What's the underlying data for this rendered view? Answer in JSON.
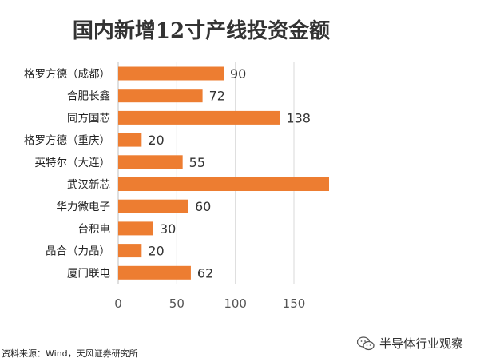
{
  "chart_data": {
    "type": "bar",
    "orientation": "horizontal",
    "title": "国内新增12寸产线投资金额",
    "categories": [
      "格罗方德（成都）",
      "合肥长鑫",
      "同方国芯",
      "格罗方德（重庆）",
      "英特尔（大连）",
      "武汉新芯",
      "华力微电子",
      "台积电",
      "晶合（力晶）",
      "厦门联电"
    ],
    "values": [
      90,
      72,
      138,
      20,
      55,
      180,
      60,
      30,
      20,
      62
    ],
    "data_labels": [
      "90",
      "72",
      "138",
      "20",
      "55",
      "",
      "60",
      "30",
      "20",
      "62"
    ],
    "xlim": [
      0,
      180
    ],
    "x_ticks": [
      "0",
      "50",
      "100",
      "150"
    ],
    "grid": true,
    "bar_color": "#ED7D31"
  },
  "source": "资料来源：Wind，天风证券研究所",
  "watermark": "半导体行业观察"
}
